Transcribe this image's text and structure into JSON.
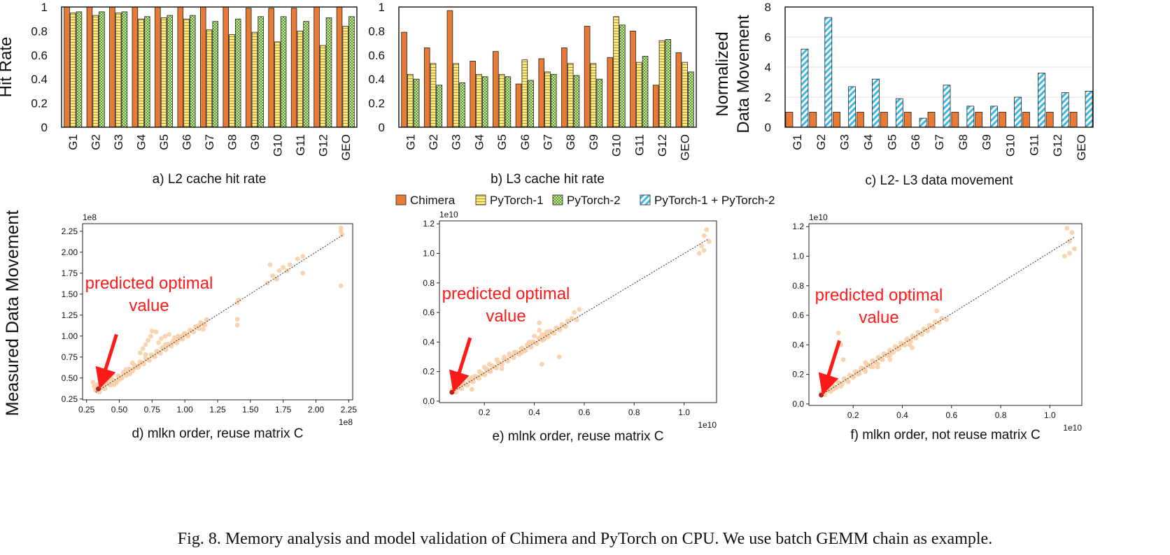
{
  "figure_caption": "Fig. 8.  Memory analysis and model validation of Chimera and PyTorch on CPU. We use batch GEMM chain as example.",
  "legend": [
    {
      "label": "Chimera",
      "pattern": "solid-orange"
    },
    {
      "label": "PyTorch-1",
      "pattern": "hlines-yellow"
    },
    {
      "label": "PyTorch-2",
      "pattern": "checker-green"
    },
    {
      "label": "PyTorch-1 + PyTorch-2",
      "pattern": "diag-blue"
    }
  ],
  "colors": {
    "chimera": "#e87a35",
    "pytorch1": "#fde88a",
    "pytorch2": "#a7d37f",
    "combined": "#4ec3e8",
    "scatter": "#f8cfa8",
    "optimal": "#b22222",
    "annotation": "#ff1a1a"
  },
  "annotation_text": [
    "predicted optimal",
    "value"
  ],
  "shared_ylabel": "Measured Data Movement",
  "chart_data": [
    {
      "id": "a",
      "type": "bar",
      "caption": "a) L2 cache hit rate",
      "ylabel": "Hit Rate",
      "ylim": [
        0,
        1
      ],
      "yticks": [
        0,
        0.2,
        0.4,
        0.6,
        0.8,
        1
      ],
      "ytick_labels": [
        "0",
        "0.2",
        "0.4",
        "0.6",
        "0.8",
        "1"
      ],
      "categories": [
        "G1",
        "G2",
        "G3",
        "G4",
        "G5",
        "G6",
        "G7",
        "G8",
        "G9",
        "G10",
        "G11",
        "G12",
        "GEO"
      ],
      "series": [
        {
          "name": "Chimera",
          "values": [
            1.0,
            1.0,
            1.0,
            1.0,
            1.0,
            1.0,
            1.0,
            1.0,
            0.99,
            0.99,
            0.99,
            1.0,
            1.0
          ]
        },
        {
          "name": "PyTorch-1",
          "values": [
            0.95,
            0.93,
            0.95,
            0.9,
            0.91,
            0.9,
            0.81,
            0.77,
            0.79,
            0.71,
            0.8,
            0.68,
            0.84
          ]
        },
        {
          "name": "PyTorch-2",
          "values": [
            0.96,
            0.96,
            0.96,
            0.92,
            0.93,
            0.93,
            0.88,
            0.9,
            0.92,
            0.92,
            0.88,
            0.91,
            0.92
          ]
        }
      ]
    },
    {
      "id": "b",
      "type": "bar",
      "caption": "b) L3 cache hit rate",
      "ylabel": "",
      "ylim": [
        0,
        1
      ],
      "yticks": [
        0,
        0.2,
        0.4,
        0.6,
        0.8,
        1
      ],
      "ytick_labels": [
        "0",
        "0.2",
        "0.4",
        "0.6",
        "0.8",
        "1"
      ],
      "categories": [
        "G1",
        "G2",
        "G3",
        "G4",
        "G5",
        "G6",
        "G7",
        "G8",
        "G9",
        "G10",
        "G11",
        "G12",
        "GEO"
      ],
      "series": [
        {
          "name": "Chimera",
          "values": [
            0.79,
            0.66,
            0.97,
            0.55,
            0.63,
            0.36,
            0.57,
            0.66,
            0.84,
            0.58,
            0.8,
            0.35,
            0.62
          ]
        },
        {
          "name": "PyTorch-1",
          "values": [
            0.44,
            0.53,
            0.53,
            0.44,
            0.44,
            0.56,
            0.46,
            0.53,
            0.53,
            0.92,
            0.54,
            0.72,
            0.54
          ]
        },
        {
          "name": "PyTorch-2",
          "values": [
            0.4,
            0.35,
            0.37,
            0.42,
            0.42,
            0.39,
            0.44,
            0.43,
            0.4,
            0.85,
            0.59,
            0.73,
            0.46
          ]
        }
      ]
    },
    {
      "id": "c",
      "type": "bar",
      "caption": "c) L2- L3 data movement",
      "ylabel": "Normalized Data Movement",
      "ylabel_lines": [
        "Normalized",
        "Data Movement"
      ],
      "ylim": [
        0,
        8
      ],
      "yticks": [
        0,
        2,
        4,
        6,
        8
      ],
      "ytick_labels": [
        "0",
        "2",
        "4",
        "6",
        "8"
      ],
      "categories": [
        "G1",
        "G2",
        "G3",
        "G4",
        "G5",
        "G6",
        "G7",
        "G8",
        "G9",
        "G10",
        "G11",
        "G12",
        "GEO"
      ],
      "series": [
        {
          "name": "Chimera",
          "values": [
            1,
            1,
            1,
            1,
            1,
            1,
            1,
            1,
            1,
            1,
            1,
            1,
            1
          ]
        },
        {
          "name": "PyTorch-1 + PyTorch-2",
          "values": [
            5.2,
            7.3,
            2.7,
            3.2,
            1.9,
            0.6,
            2.8,
            1.4,
            1.4,
            2.0,
            3.6,
            2.3,
            2.4
          ]
        }
      ]
    },
    {
      "id": "d",
      "type": "scatter",
      "caption": "d) mlkn order, reuse matrix C",
      "xlim": [
        0.22,
        2.28
      ],
      "ylim": [
        0.24,
        2.34
      ],
      "xticks": [
        0.25,
        0.5,
        0.75,
        1.0,
        1.25,
        1.5,
        1.75,
        2.0,
        2.25
      ],
      "xtick_labels": [
        "0.25",
        "0.50",
        "0.75",
        "1.00",
        "1.25",
        "1.50",
        "1.75",
        "2.00",
        "2.25"
      ],
      "yticks": [
        0.25,
        0.5,
        0.75,
        1.0,
        1.25,
        1.5,
        1.75,
        2.0,
        2.25
      ],
      "ytick_labels": [
        "0.25",
        "0.50",
        "0.75",
        "1.00",
        "1.25",
        "1.50",
        "1.75",
        "2.00",
        "2.25"
      ],
      "x_offset_label": "1e8",
      "y_offset_label": "1e8",
      "fit_line": [
        [
          0.32,
          0.33
        ],
        [
          2.2,
          2.2
        ]
      ],
      "optimal": [
        0.34,
        0.37
      ],
      "points": [
        [
          0.3,
          0.45
        ],
        [
          0.31,
          0.4
        ],
        [
          0.32,
          0.36
        ],
        [
          0.33,
          0.42
        ],
        [
          0.35,
          0.4
        ],
        [
          0.36,
          0.38
        ],
        [
          0.38,
          0.41
        ],
        [
          0.4,
          0.44
        ],
        [
          0.42,
          0.47
        ],
        [
          0.44,
          0.5
        ],
        [
          0.45,
          0.55
        ],
        [
          0.46,
          0.42
        ],
        [
          0.48,
          0.45
        ],
        [
          0.5,
          0.48
        ],
        [
          0.52,
          0.5
        ],
        [
          0.55,
          0.53
        ],
        [
          0.58,
          0.55
        ],
        [
          0.6,
          0.6
        ],
        [
          0.62,
          0.62
        ],
        [
          0.65,
          0.65
        ],
        [
          0.66,
          0.8
        ],
        [
          0.68,
          0.85
        ],
        [
          0.7,
          0.9
        ],
        [
          0.72,
          0.95
        ],
        [
          0.74,
          1.0
        ],
        [
          0.75,
          1.06
        ],
        [
          0.78,
          1.05
        ],
        [
          0.8,
          0.92
        ],
        [
          0.82,
          0.97
        ],
        [
          0.85,
          1.0
        ],
        [
          0.88,
          1.02
        ],
        [
          0.9,
          0.92
        ],
        [
          0.92,
          0.98
        ],
        [
          0.95,
          0.96
        ],
        [
          0.98,
          1.0
        ],
        [
          1.0,
          1.03
        ],
        [
          1.02,
          1.0
        ],
        [
          1.1,
          1.12
        ],
        [
          1.12,
          1.16
        ],
        [
          1.14,
          1.08
        ],
        [
          1.4,
          1.4
        ],
        [
          1.4,
          1.2
        ],
        [
          1.4,
          1.13
        ],
        [
          1.41,
          1.43
        ],
        [
          1.63,
          1.63
        ],
        [
          1.65,
          1.85
        ],
        [
          1.67,
          1.72
        ],
        [
          1.7,
          1.68
        ],
        [
          1.72,
          1.78
        ],
        [
          1.75,
          1.82
        ],
        [
          1.78,
          1.78
        ],
        [
          1.8,
          1.85
        ],
        [
          1.86,
          1.92
        ],
        [
          1.9,
          1.95
        ],
        [
          1.9,
          1.75
        ],
        [
          2.19,
          2.29
        ],
        [
          2.19,
          2.25
        ],
        [
          2.2,
          2.21
        ],
        [
          2.19,
          1.6
        ],
        [
          0.7,
          0.78
        ],
        [
          0.6,
          0.68
        ],
        [
          0.55,
          0.6
        ],
        [
          0.85,
          0.9
        ],
        [
          0.95,
          1.0
        ]
      ]
    },
    {
      "id": "e",
      "type": "scatter",
      "caption": "e) mlnk order, reuse matrix C",
      "xlim": [
        0.02,
        1.13
      ],
      "ylim": [
        -0.01,
        1.22
      ],
      "xticks": [
        0.2,
        0.4,
        0.6,
        0.8,
        1.0
      ],
      "xtick_labels": [
        "0.2",
        "0.4",
        "0.6",
        "0.8",
        "1.0"
      ],
      "yticks": [
        0.0,
        0.2,
        0.4,
        0.6,
        0.8,
        1.0,
        1.2
      ],
      "ytick_labels": [
        "0.0",
        "0.2",
        "0.4",
        "0.6",
        "0.8",
        "1.0",
        "1.2"
      ],
      "x_offset_label": "1e10",
      "y_offset_label": "1e10",
      "fit_line": [
        [
          0.07,
          0.06
        ],
        [
          1.1,
          1.1
        ]
      ],
      "optimal": [
        0.07,
        0.06
      ],
      "points": [
        [
          0.08,
          0.08
        ],
        [
          0.1,
          0.1
        ],
        [
          0.12,
          0.12
        ],
        [
          0.15,
          0.16
        ],
        [
          0.18,
          0.2
        ],
        [
          0.2,
          0.23
        ],
        [
          0.22,
          0.25
        ],
        [
          0.25,
          0.28
        ],
        [
          0.28,
          0.3
        ],
        [
          0.3,
          0.32
        ],
        [
          0.32,
          0.33
        ],
        [
          0.35,
          0.36
        ],
        [
          0.38,
          0.4
        ],
        [
          0.4,
          0.44
        ],
        [
          0.42,
          0.48
        ],
        [
          0.42,
          0.53
        ],
        [
          0.43,
          0.45
        ],
        [
          0.44,
          0.42
        ],
        [
          0.45,
          0.47
        ],
        [
          0.43,
          0.25
        ],
        [
          0.15,
          0.08
        ],
        [
          0.27,
          0.22
        ],
        [
          0.55,
          0.56
        ],
        [
          0.56,
          0.6
        ],
        [
          0.58,
          0.62
        ],
        [
          0.57,
          0.55
        ],
        [
          1.07,
          1.05
        ],
        [
          1.08,
          1.12
        ],
        [
          1.09,
          1.16
        ],
        [
          1.1,
          1.08
        ],
        [
          1.08,
          1.02
        ],
        [
          1.06,
          1.0
        ],
        [
          0.5,
          0.3
        ],
        [
          0.22,
          0.2
        ],
        [
          0.35,
          0.33
        ],
        [
          0.38,
          0.38
        ]
      ]
    },
    {
      "id": "f",
      "type": "scatter",
      "caption": "f) mlkn order, not reuse matrix C",
      "xlim": [
        0.02,
        1.13
      ],
      "ylim": [
        -0.01,
        1.22
      ],
      "xticks": [
        0.2,
        0.4,
        0.6,
        0.8,
        1.0
      ],
      "xtick_labels": [
        "0.2",
        "0.4",
        "0.6",
        "0.8",
        "1.0"
      ],
      "yticks": [
        0.0,
        0.2,
        0.4,
        0.6,
        0.8,
        1.0,
        1.2
      ],
      "ytick_labels": [
        "0.0",
        "0.2",
        "0.4",
        "0.6",
        "0.8",
        "1.0",
        "1.2"
      ],
      "x_offset_label": "1e10",
      "y_offset_label": "1e10",
      "fit_line": [
        [
          0.07,
          0.06
        ],
        [
          1.1,
          1.13
        ]
      ],
      "optimal": [
        0.07,
        0.06
      ],
      "points": [
        [
          0.08,
          0.07
        ],
        [
          0.1,
          0.09
        ],
        [
          0.12,
          0.1
        ],
        [
          0.15,
          0.12
        ],
        [
          0.18,
          0.15
        ],
        [
          0.2,
          0.18
        ],
        [
          0.22,
          0.2
        ],
        [
          0.25,
          0.22
        ],
        [
          0.28,
          0.25
        ],
        [
          0.3,
          0.27
        ],
        [
          0.32,
          0.3
        ],
        [
          0.35,
          0.33
        ],
        [
          0.38,
          0.37
        ],
        [
          0.4,
          0.4
        ],
        [
          0.42,
          0.44
        ],
        [
          0.42,
          0.73
        ],
        [
          0.43,
          0.4
        ],
        [
          0.44,
          0.38
        ],
        [
          0.45,
          0.45
        ],
        [
          0.14,
          0.48
        ],
        [
          0.15,
          0.4
        ],
        [
          0.16,
          0.3
        ],
        [
          0.55,
          0.55
        ],
        [
          0.54,
          0.63
        ],
        [
          0.56,
          0.58
        ],
        [
          0.58,
          0.57
        ],
        [
          1.07,
          1.19
        ],
        [
          1.08,
          1.1
        ],
        [
          1.09,
          1.16
        ],
        [
          1.1,
          1.05
        ],
        [
          1.08,
          1.02
        ],
        [
          1.06,
          1.0
        ],
        [
          0.25,
          0.28
        ],
        [
          0.3,
          0.25
        ],
        [
          0.35,
          0.3
        ]
      ]
    }
  ]
}
